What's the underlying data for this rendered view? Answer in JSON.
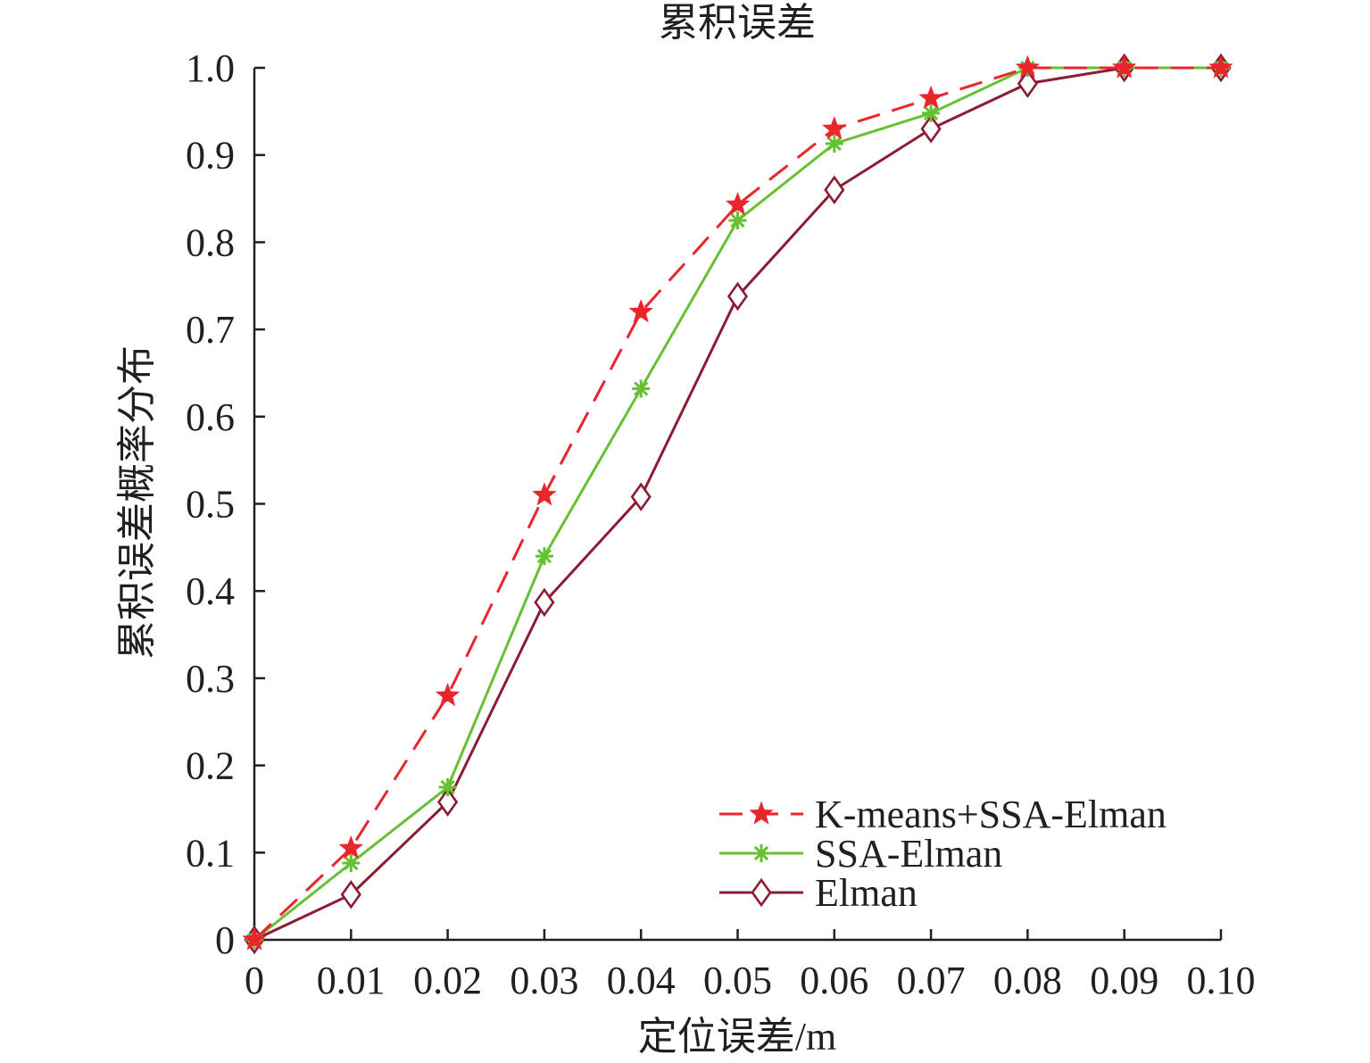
{
  "chart_data": {
    "type": "line",
    "title": "累积误差",
    "xlabel": "定位误差/m",
    "ylabel": "累积误差概率分布",
    "x": [
      0,
      0.01,
      0.02,
      0.03,
      0.04,
      0.05,
      0.06,
      0.07,
      0.08,
      0.09,
      0.1
    ],
    "x_tick_labels": [
      "0",
      "0.01",
      "0.02",
      "0.03",
      "0.04",
      "0.05",
      "0.06",
      "0.07",
      "0.08",
      "0.09",
      "0.10"
    ],
    "y_tick_values": [
      0,
      0.1,
      0.2,
      0.3,
      0.4,
      0.5,
      0.6,
      0.7,
      0.8,
      0.9,
      1.0
    ],
    "y_tick_labels": [
      "0",
      "0.1",
      "0.2",
      "0.3",
      "0.4",
      "0.5",
      "0.6",
      "0.7",
      "0.8",
      "0.9",
      "1.0"
    ],
    "xlim": [
      0,
      0.1
    ],
    "ylim": [
      0,
      1.0
    ],
    "grid": false,
    "legend_position": "bottom-right",
    "series": [
      {
        "name": "K-means+SSA-Elman",
        "color": "#e8262c",
        "line_style": "dashed",
        "marker": "star",
        "values": [
          0,
          0.105,
          0.28,
          0.51,
          0.72,
          0.843,
          0.93,
          0.965,
          1.0,
          1.0,
          1.0
        ]
      },
      {
        "name": "SSA-Elman",
        "color": "#66c132",
        "line_style": "solid",
        "marker": "asterisk",
        "values": [
          0,
          0.088,
          0.175,
          0.44,
          0.632,
          0.825,
          0.913,
          0.948,
          1.0,
          1.0,
          1.0
        ]
      },
      {
        "name": "Elman",
        "color": "#8b1c34",
        "line_style": "solid",
        "marker": "diamond",
        "values": [
          0,
          0.052,
          0.158,
          0.387,
          0.508,
          0.738,
          0.86,
          0.93,
          0.982,
          1.0,
          1.0
        ]
      }
    ]
  }
}
